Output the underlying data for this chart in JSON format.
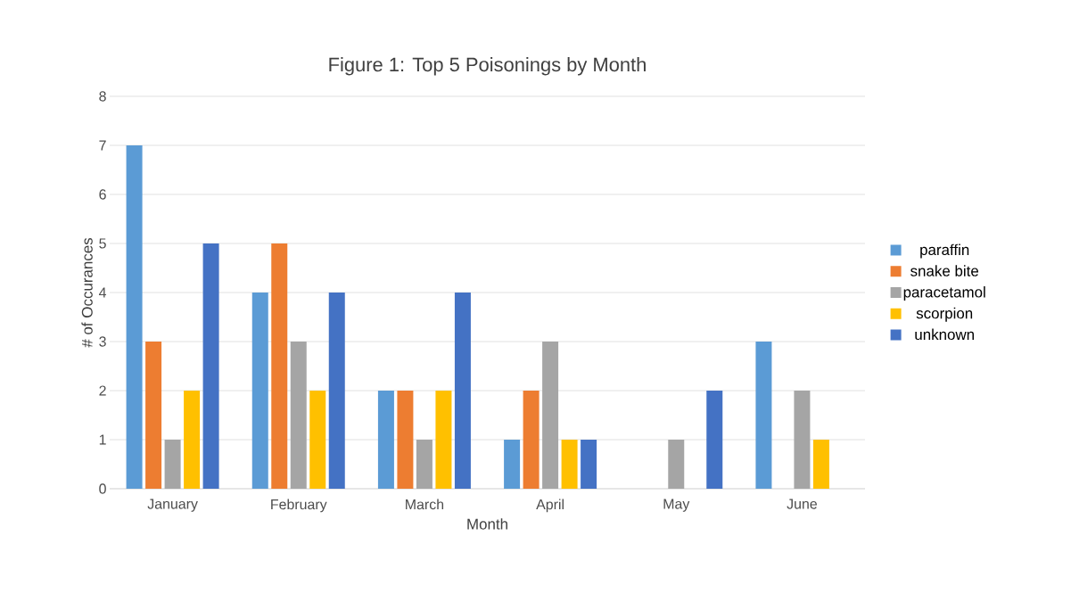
{
  "chart_data": {
    "type": "bar",
    "title": "Figure 1: Top 5 Poisonings by Month",
    "xlabel": "Month",
    "ylabel": "# of Occurances",
    "categories": [
      "January",
      "February",
      "March",
      "April",
      "May",
      "June"
    ],
    "series": [
      {
        "name": "paraffin",
        "color": "#5b9bd5",
        "values": [
          7,
          4,
          2,
          1,
          0,
          3
        ]
      },
      {
        "name": "snake bite",
        "color": "#ed7d31",
        "values": [
          3,
          5,
          2,
          2,
          0,
          0
        ]
      },
      {
        "name": "paracetamol",
        "color": "#a5a5a5",
        "values": [
          1,
          3,
          1,
          3,
          1,
          2
        ]
      },
      {
        "name": "scorpion",
        "color": "#ffc000",
        "values": [
          2,
          2,
          2,
          1,
          0,
          1
        ]
      },
      {
        "name": "unknown",
        "color": "#4472c4",
        "values": [
          5,
          4,
          4,
          1,
          2,
          0
        ]
      }
    ],
    "ylim": [
      0,
      8
    ],
    "yticks": [
      0,
      1,
      2,
      3,
      4,
      5,
      6,
      7,
      8
    ],
    "grid": "y",
    "legend": "right"
  }
}
